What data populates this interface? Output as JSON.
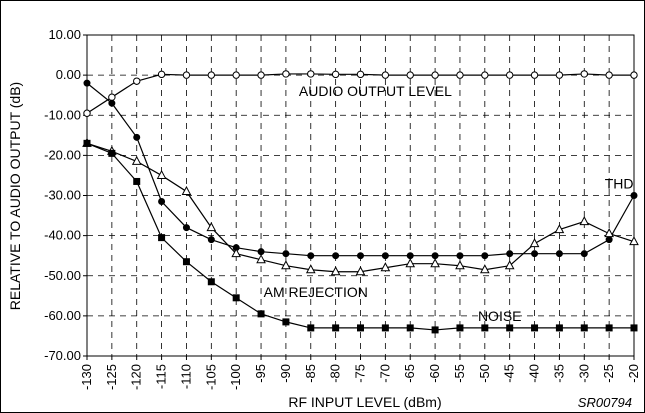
{
  "chart_data": {
    "type": "line",
    "xlabel": "RF INPUT LEVEL (dBm)",
    "ylabel": "RELATIVE TO AUDIO OUTPUT (dB)",
    "figure_code": "SR00794",
    "xlim": [
      -130,
      -20
    ],
    "ylim": [
      -70,
      10
    ],
    "x_ticks": [
      "-130",
      "-125",
      "-120",
      "-115",
      "-110",
      "-105",
      "-100",
      "-95",
      "-90",
      "-85",
      "-80",
      "-75",
      "-70",
      "-65",
      "-60",
      "-55",
      "-50",
      "-45",
      "-40",
      "-35",
      "-30",
      "-25",
      "-20"
    ],
    "y_ticks": [
      "10.00",
      "0.00",
      "-10.00",
      "-20.00",
      "-30.00",
      "-40.00",
      "-50.00",
      "-60.00",
      "-70.00"
    ],
    "grid": true,
    "series": [
      {
        "name": "AUDIO OUTPUT LEVEL",
        "marker": "circle-open",
        "x": [
          -130,
          -125,
          -120,
          -115,
          -110,
          -105,
          -100,
          -95,
          -90,
          -85,
          -80,
          -75,
          -70,
          -65,
          -60,
          -55,
          -50,
          -45,
          -40,
          -35,
          -30,
          -25,
          -20
        ],
        "y": [
          -9.5,
          -5.5,
          -1.5,
          0.2,
          0,
          0,
          0,
          0,
          0.3,
          0.3,
          0.2,
          0.2,
          0,
          0,
          0,
          0,
          0,
          0,
          0,
          0,
          0.3,
          0,
          0
        ]
      },
      {
        "name": "THD",
        "marker": "diamond-filled",
        "x": [
          -130,
          -125,
          -120,
          -115,
          -110,
          -105,
          -100,
          -95,
          -90,
          -85,
          -80,
          -75,
          -70,
          -65,
          -60,
          -55,
          -50,
          -45,
          -40,
          -35,
          -30,
          -25,
          -20
        ],
        "y": [
          -2,
          -7,
          -15.5,
          -31.5,
          -38,
          -41,
          -43,
          -44,
          -44.5,
          -45,
          -45,
          -45,
          -45,
          -45,
          -45,
          -45,
          -45,
          -44.5,
          -44.5,
          -44.5,
          -44.5,
          -41,
          -30
        ]
      },
      {
        "name": "AM REJECTION",
        "marker": "triangle-open",
        "x": [
          -130,
          -125,
          -120,
          -115,
          -110,
          -105,
          -100,
          -95,
          -90,
          -85,
          -80,
          -75,
          -70,
          -65,
          -60,
          -55,
          -50,
          -45,
          -40,
          -35,
          -30,
          -25,
          -20
        ],
        "y": [
          -17,
          -19,
          -21.5,
          -25,
          -29,
          -38,
          -44.5,
          -46,
          -47.5,
          -48.5,
          -49,
          -49,
          -48,
          -47,
          -47,
          -47.5,
          -48.5,
          -47.5,
          -42,
          -38.5,
          -36.5,
          -39.5,
          -41.5
        ]
      },
      {
        "name": "NOISE",
        "marker": "square-filled",
        "x": [
          -130,
          -125,
          -120,
          -115,
          -110,
          -105,
          -100,
          -95,
          -90,
          -85,
          -80,
          -75,
          -70,
          -65,
          -60,
          -55,
          -50,
          -45,
          -40,
          -35,
          -30,
          -25,
          -20
        ],
        "y": [
          -17,
          -19.5,
          -26.5,
          -40.5,
          -46.5,
          -51.5,
          -55.5,
          -59.5,
          -61.5,
          -63,
          -63,
          -63,
          -63,
          -63,
          -63.5,
          -63,
          -63,
          -63,
          -63,
          -63,
          -63,
          -63,
          -63
        ]
      }
    ],
    "annotations": [
      {
        "text": "AUDIO OUTPUT LEVEL",
        "x": -72,
        "y": -4
      },
      {
        "text": "THD",
        "x": -23,
        "y": -27
      },
      {
        "text": "AM REJECTION",
        "x": -84,
        "y": -54
      },
      {
        "text": "NOISE",
        "x": -47,
        "y": -60
      }
    ]
  }
}
